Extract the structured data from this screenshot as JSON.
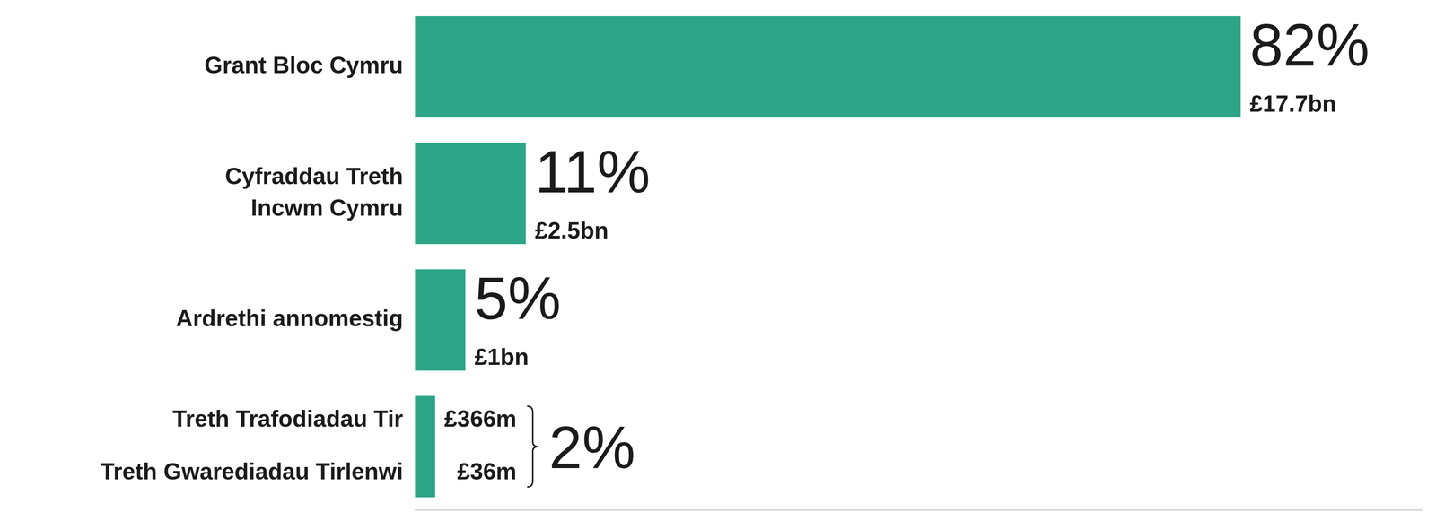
{
  "chart_data": {
    "type": "bar",
    "orientation": "horizontal",
    "categories": [
      "Grant Bloc Cymru",
      "Cyfraddau Treth Incwm Cymru",
      "Ardrethi annomestig",
      [
        "Treth Trafodiadau Tir",
        "Treth Gwarediadau Tirlenwi"
      ]
    ],
    "values": [
      82,
      11,
      5,
      2
    ],
    "value_labels": [
      "82%",
      "11%",
      "5%",
      "2%"
    ],
    "amounts": [
      {
        "value": 17700000000,
        "label": "£17.7bn"
      },
      {
        "value": 2500000000,
        "label": "£2.5bn"
      },
      {
        "value": 1000000000,
        "label": "£1bn"
      },
      [
        {
          "value": 366000000,
          "label": "£366m"
        },
        {
          "value": 36000000,
          "label": "£36m"
        }
      ]
    ],
    "color": "#2ca687",
    "xlim": [
      0,
      100
    ],
    "grid": false,
    "data_labels": true,
    "tick_labels": "y"
  }
}
